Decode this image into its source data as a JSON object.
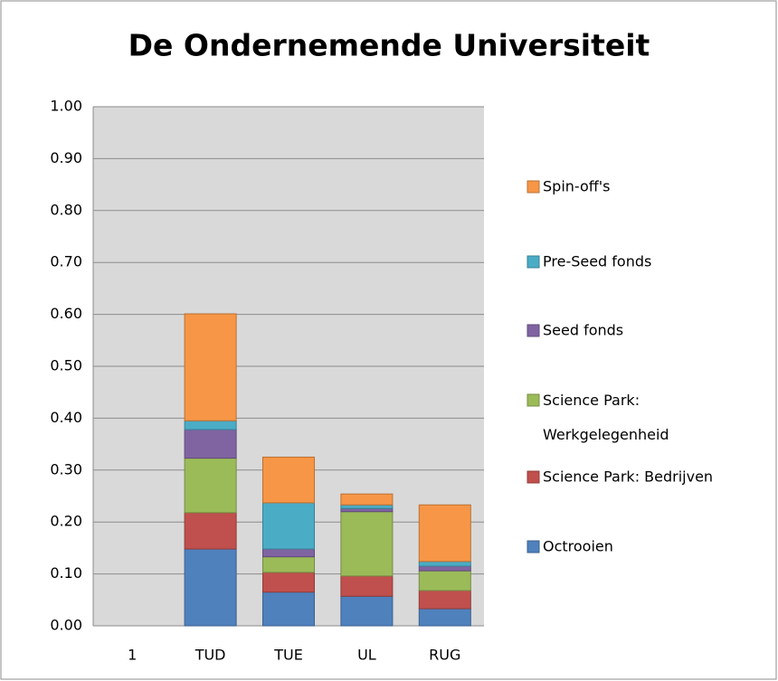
{
  "chart_data": {
    "type": "stacked_bar",
    "title": "De Ondernemende Universiteit",
    "categories": [
      "1",
      "TUD",
      "TUE",
      "UL",
      "RUG"
    ],
    "series": [
      {
        "name": "Octrooien",
        "color": "#4f81bd",
        "values": [
          null,
          0.148,
          0.065,
          0.057,
          0.033
        ]
      },
      {
        "name": "Science Park: Bedrijven",
        "color": "#c0504d",
        "values": [
          null,
          0.07,
          0.038,
          0.039,
          0.035
        ]
      },
      {
        "name": "Science Park: Werkgelegenheid",
        "color": "#9bbb59",
        "values": [
          null,
          0.105,
          0.03,
          0.124,
          0.038
        ]
      },
      {
        "name": "Seed fonds",
        "color": "#8064a2",
        "values": [
          null,
          0.055,
          0.015,
          0.006,
          0.009
        ]
      },
      {
        "name": "Pre-Seed fonds",
        "color": "#4bacc6",
        "values": [
          null,
          0.017,
          0.089,
          0.007,
          0.009
        ]
      },
      {
        "name": "Spin-off's",
        "color": "#f79646",
        "values": [
          null,
          0.206,
          0.088,
          0.021,
          0.109
        ]
      }
    ],
    "ylim": [
      0,
      1
    ],
    "yticks": [
      {
        "value": 0,
        "label": "0.00"
      },
      {
        "value": 0.1,
        "label": "0.10"
      },
      {
        "value": 0.2,
        "label": "0.20"
      },
      {
        "value": 0.3,
        "label": "0.30"
      },
      {
        "value": 0.4,
        "label": "0.40"
      },
      {
        "value": 0.5,
        "label": "0.50"
      },
      {
        "value": 0.6,
        "label": "0.60"
      },
      {
        "value": 0.7,
        "label": "0.70"
      },
      {
        "value": 0.8,
        "label": "0.80"
      },
      {
        "value": 0.9,
        "label": "0.90"
      },
      {
        "value": 1,
        "label": "1.00"
      }
    ],
    "grid": true,
    "legend": "right"
  }
}
